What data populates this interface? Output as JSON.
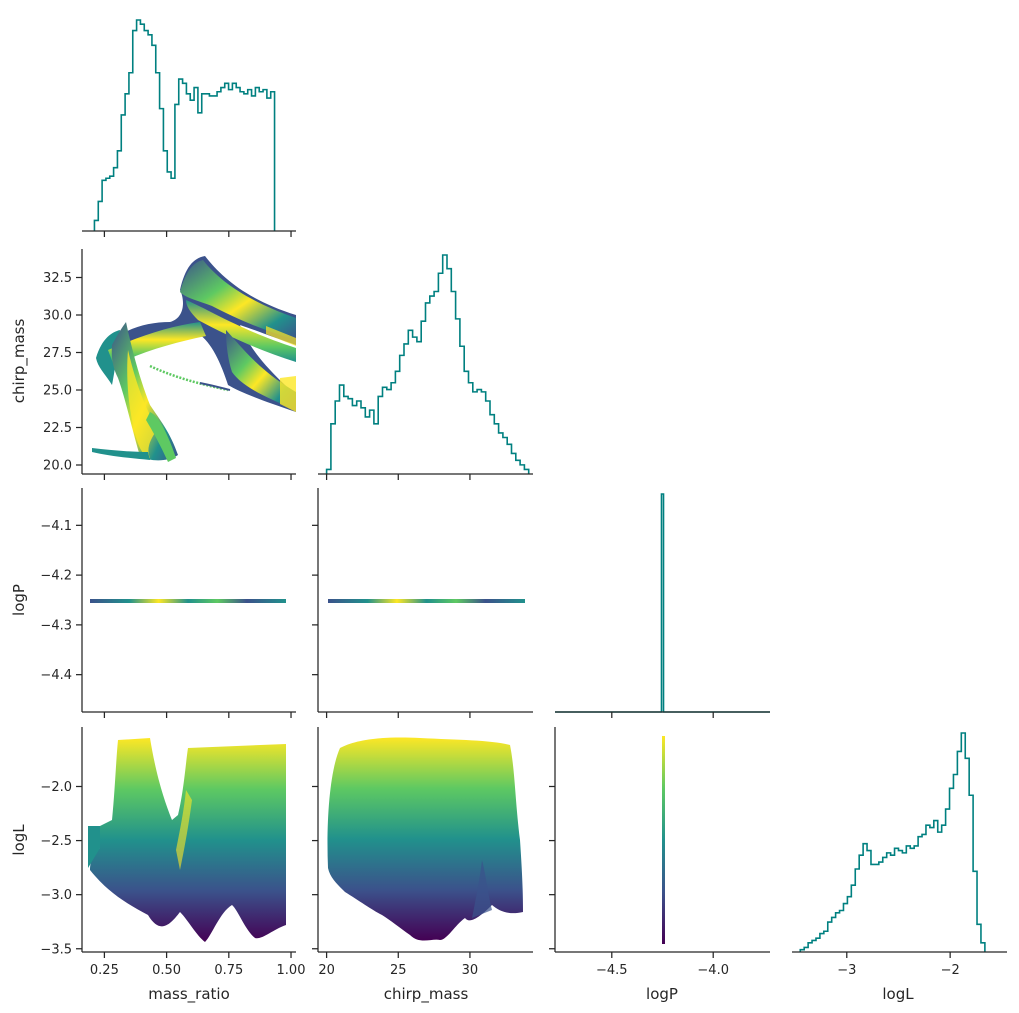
{
  "chart_data": {
    "type": "corner",
    "variables": [
      "mass_ratio",
      "chirp_mass",
      "logP",
      "logL"
    ],
    "ranges": {
      "mass_ratio": [
        0.16,
        1.02
      ],
      "chirp_mass": [
        19.4,
        34.4
      ],
      "logP": [
        -4.78,
        -3.72
      ],
      "logL": [
        -3.53,
        -1.45
      ]
    },
    "logP_scatter_range": [
      -4.475,
      -4.025
    ],
    "ticks": {
      "mass_ratio": [
        0.25,
        0.5,
        0.75,
        1.0
      ],
      "chirp_mass": [
        20,
        25,
        30
      ],
      "chirp_mass_y": [
        20.0,
        22.5,
        25.0,
        27.5,
        30.0,
        32.5
      ],
      "logP_x": [
        -4.5,
        -4.0
      ],
      "logP_y": [
        -4.1,
        -4.2,
        -4.3,
        -4.4
      ],
      "logL": [
        -3,
        -2
      ],
      "logL_y": [
        -2.0,
        -2.5,
        -3.0,
        -3.5
      ]
    },
    "tick_labels": {
      "mass_ratio": [
        "0.25",
        "0.50",
        "0.75",
        "1.00"
      ],
      "chirp_mass": [
        "20",
        "25",
        "30"
      ],
      "chirp_mass_y": [
        "20.0",
        "22.5",
        "25.0",
        "27.5",
        "30.0",
        "32.5"
      ],
      "logP_x": [
        "−4.5",
        "−4.0"
      ],
      "logP_y": [
        "−4.1",
        "−4.2",
        "−4.3",
        "−4.4"
      ],
      "logL": [
        "−3",
        "−2"
      ],
      "logL_y": [
        "−2.0",
        "−2.5",
        "−3.0",
        "−3.5"
      ]
    },
    "axis_labels": {
      "x": [
        "mass_ratio",
        "chirp_mass",
        "logP",
        "logL"
      ],
      "y": [
        "chirp_mass",
        "logP",
        "logL"
      ]
    },
    "diagonal_histograms": {
      "mass_ratio": {
        "start": 0.21,
        "width": 0.0154,
        "heights": [
          5,
          14,
          24,
          25,
          26,
          30,
          38,
          55,
          65,
          75,
          95,
          100,
          98,
          95,
          93,
          88,
          75,
          58,
          38,
          28,
          25,
          60,
          72,
          70,
          65,
          62,
          68,
          56,
          65,
          65,
          64,
          64,
          66,
          68,
          70,
          67,
          70,
          68,
          66,
          65,
          67,
          64,
          68,
          66,
          67,
          63,
          66
        ]
      },
      "chirp_mass": {
        "start": 20.0,
        "width": 0.3,
        "heights": [
          2,
          22,
          32,
          39,
          34,
          33,
          30,
          32,
          29,
          25,
          28,
          22,
          34,
          38,
          37,
          40,
          45,
          52,
          57,
          63,
          60,
          58,
          67,
          75,
          78,
          80,
          88,
          96,
          90,
          80,
          68,
          56,
          45,
          40,
          36,
          37,
          36,
          32,
          26,
          22,
          18,
          16,
          13,
          9,
          6,
          4,
          2
        ]
      },
      "logP": {
        "start": -4.255,
        "width": 0.01,
        "heights": [
          100
        ]
      },
      "logL": {
        "start": -3.45,
        "width": 0.038,
        "heights": [
          1,
          2,
          4,
          5,
          6,
          8,
          9,
          13,
          15,
          17,
          18,
          21,
          24,
          29,
          36,
          42,
          47,
          44,
          38,
          38,
          39,
          41,
          43,
          42,
          45,
          44,
          43,
          46,
          45,
          46,
          50,
          51,
          55,
          54,
          57,
          52,
          55,
          62,
          71,
          77,
          87,
          95,
          84,
          68,
          35,
          12,
          4
        ]
      }
    },
    "colormap": "viridis",
    "colormap_stops": [
      "#440154",
      "#3b528b",
      "#21918c",
      "#5ec962",
      "#fde725"
    ],
    "hist_color": "#008080"
  }
}
